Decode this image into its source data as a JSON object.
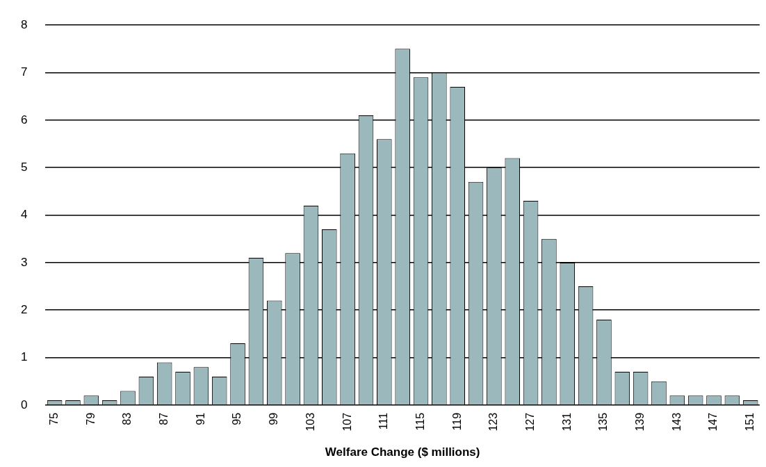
{
  "chart_data": {
    "type": "bar",
    "xlabel": "Welfare Change ($ millions)",
    "categories": [
      "75",
      null,
      "79",
      null,
      "83",
      null,
      "87",
      null,
      "91",
      null,
      "95",
      null,
      "99",
      null,
      "103",
      null,
      "107",
      null,
      "111",
      null,
      "115",
      null,
      "119",
      null,
      "123",
      null,
      "127",
      null,
      "131",
      null,
      "135",
      null,
      "139",
      null,
      "143",
      null,
      "147",
      null,
      "151"
    ],
    "values": [
      0.1,
      0.1,
      0.2,
      0.1,
      0.3,
      0.6,
      0.9,
      0.7,
      0.8,
      0.6,
      1.3,
      3.1,
      2.2,
      3.2,
      4.2,
      3.7,
      5.3,
      6.1,
      5.6,
      7.5,
      6.9,
      7.0,
      6.7,
      4.7,
      5.0,
      5.2,
      4.3,
      3.5,
      3.0,
      2.5,
      1.8,
      0.7,
      0.7,
      0.5,
      0.2,
      0.2,
      0.2,
      0.2,
      0.1
    ],
    "color": "#9bb8bd",
    "ylim": [
      0,
      8
    ],
    "yticks": [
      0,
      1,
      2,
      3,
      4,
      5,
      6,
      7,
      8
    ],
    "grid": "y",
    "legend": false
  }
}
